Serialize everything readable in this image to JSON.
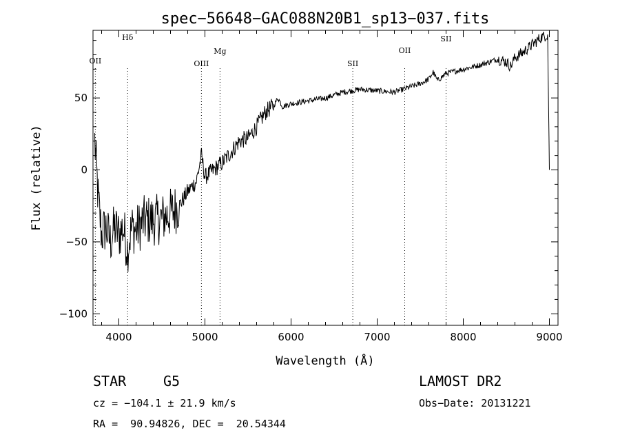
{
  "chart_data": {
    "type": "line",
    "title": "spec−56648−GAC088N20B1_sp13−037.fits",
    "xlabel": "Wavelength (Å)",
    "ylabel": "Flux (relative)",
    "xlim": [
      3700,
      9100
    ],
    "ylim": [
      -108,
      97
    ],
    "xticks": [
      4000,
      5000,
      6000,
      7000,
      8000,
      9000
    ],
    "xtick_labels": [
      "4000",
      "5000",
      "6000",
      "7000",
      "8000",
      "9000"
    ],
    "yticks": [
      -100,
      -50,
      0,
      50
    ],
    "ytick_labels": [
      "−100",
      "−50",
      "0",
      "50"
    ],
    "grid": false,
    "lines": [
      {
        "label": "OII",
        "x": 3727
      },
      {
        "label": "Hδ",
        "x": 4102
      },
      {
        "label": "OIII",
        "x": 4959
      },
      {
        "label": "Mg",
        "x": 5175
      },
      {
        "label": "SII",
        "x": 6717
      },
      {
        "label": "OII",
        "x": 7320
      },
      {
        "label": "SII",
        "x": 7800
      }
    ],
    "series": [
      {
        "x": [
          3720,
          3760,
          3800,
          3850,
          3900,
          3950,
          4000,
          4050,
          4100,
          4150,
          4200,
          4300,
          4400,
          4500,
          4600,
          4700,
          4800,
          4900,
          4960,
          5000,
          5100,
          5200,
          5300,
          5400,
          5500,
          5600,
          5700,
          5800,
          5850,
          5900,
          6000,
          6200,
          6400,
          6600,
          6800,
          7000,
          7200,
          7400,
          7500,
          7600,
          7650,
          7700,
          7800,
          8000,
          8200,
          8400,
          8500,
          8550,
          8600,
          8700,
          8800,
          8900,
          8980,
          8990,
          9000
        ],
        "y": [
          20,
          -20,
          -45,
          -40,
          -50,
          -40,
          -45,
          -40,
          -55,
          -40,
          -42,
          -35,
          -35,
          -34,
          -30,
          -25,
          -15,
          -8,
          10,
          -5,
          0,
          5,
          12,
          20,
          22,
          30,
          40,
          45,
          50,
          44,
          46,
          48,
          50,
          54,
          56,
          55,
          54,
          58,
          60,
          63,
          68,
          62,
          67,
          70,
          73,
          77,
          75,
          72,
          78,
          82,
          87,
          92,
          94,
          45,
          0
        ]
      }
    ]
  },
  "footer": {
    "object_class": "STAR",
    "subclass": "G5",
    "survey": "LAMOST DR2",
    "redshift": "cz = −104.1 ± 21.9 km/s",
    "obs_date": "Obs−Date: 20131221",
    "coords": "RA =  90.94826, DEC =  20.54344"
  }
}
